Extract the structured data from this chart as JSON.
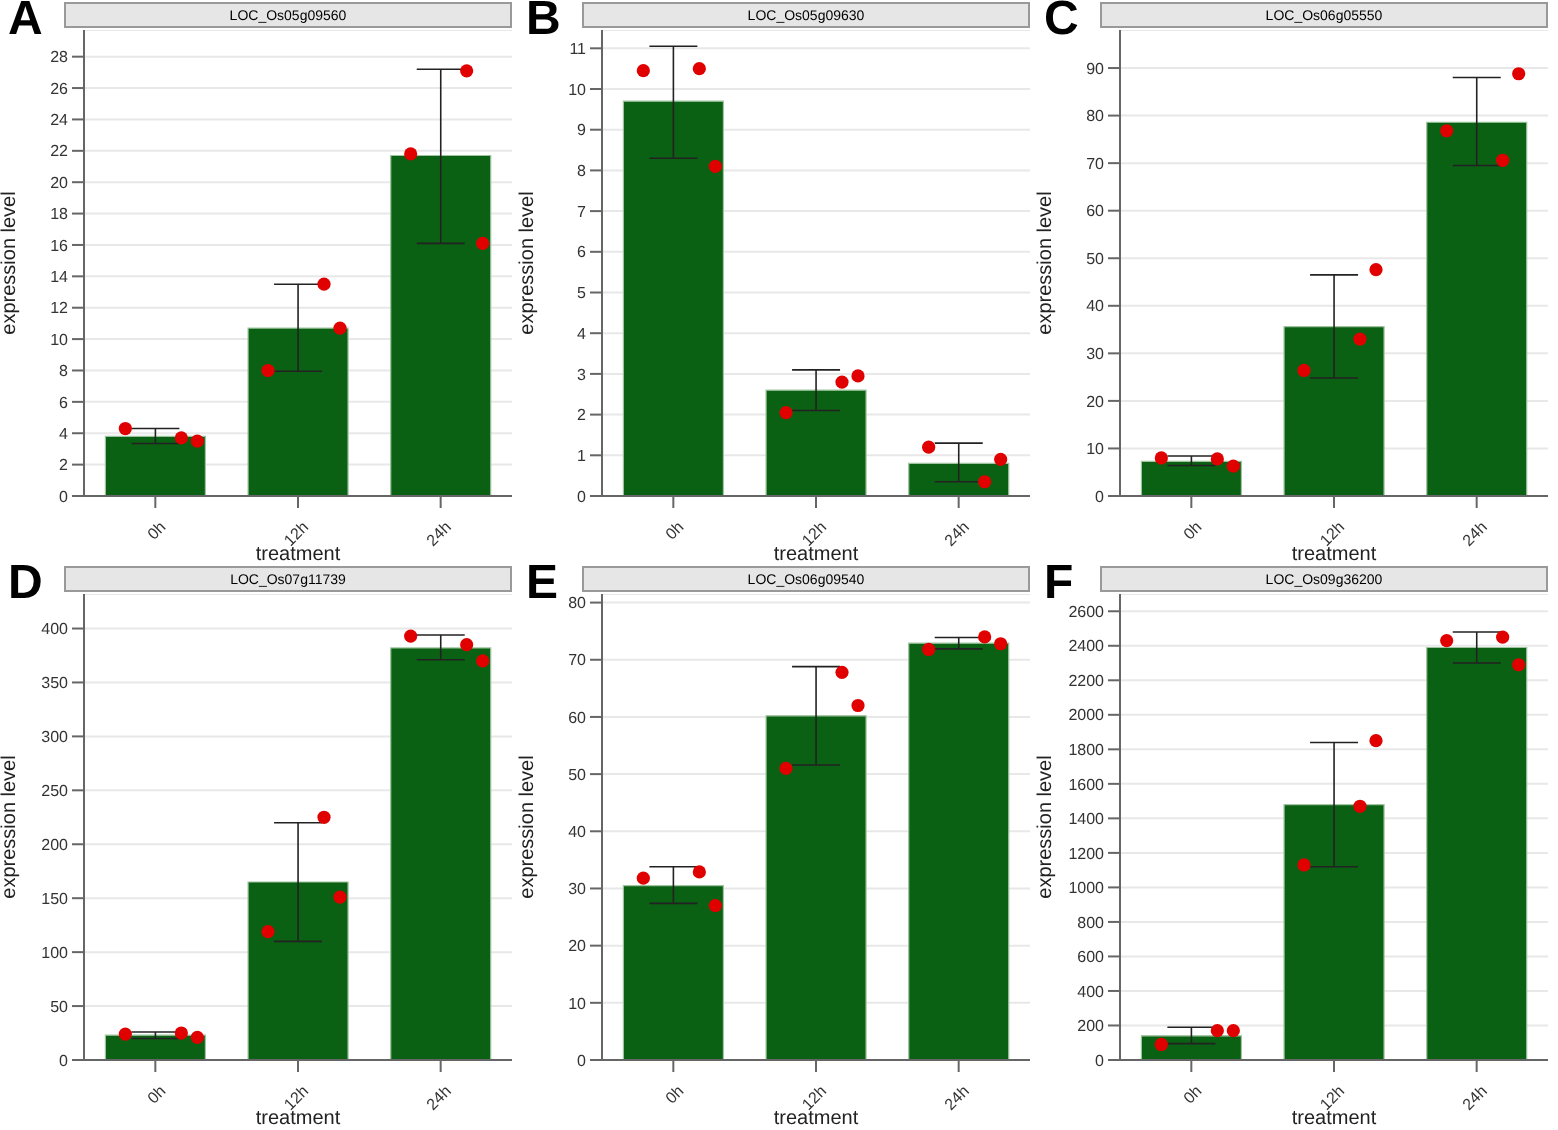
{
  "chart_data": [
    {
      "type": "bar",
      "title": "LOC_Os05g09560",
      "annotations": [
        "A"
      ],
      "xlabel": "treatment",
      "ylabel": "expression level",
      "categories": [
        "0h",
        "12h",
        "24h"
      ],
      "ylim": [
        0,
        29.7
      ],
      "yticks": [
        0,
        2,
        4,
        6,
        8,
        10,
        12,
        14,
        16,
        18,
        20,
        22,
        24,
        26,
        28
      ],
      "grid": "y",
      "marker": "circle",
      "series": [
        {
          "color": "#0b6113",
          "values": [
            3.8,
            10.7,
            21.7
          ],
          "errors": [
            [
              3.35,
              4.3
            ],
            [
              7.95,
              13.5
            ],
            [
              16.1,
              27.2
            ]
          ]
        },
        {
          "type": "scatter",
          "color": "#e00000",
          "x": [
            "0h",
            "0h",
            "0h",
            "12h",
            "12h",
            "12h",
            "24h",
            "24h",
            "24h"
          ],
          "values": [
            4.3,
            3.7,
            3.5,
            8.0,
            13.5,
            10.7,
            21.8,
            27.1,
            16.1
          ]
        }
      ]
    },
    {
      "type": "bar",
      "title": "LOC_Os05g09630",
      "annotations": [
        "B"
      ],
      "xlabel": "treatment",
      "ylabel": "expression level",
      "categories": [
        "0h",
        "12h",
        "24h"
      ],
      "ylim": [
        0,
        11.45
      ],
      "yticks": [
        0,
        1,
        2,
        3,
        4,
        5,
        6,
        7,
        8,
        9,
        10,
        11
      ],
      "grid": "y",
      "marker": "circle",
      "series": [
        {
          "color": "#0b6113",
          "values": [
            9.7,
            2.6,
            0.8
          ],
          "errors": [
            [
              8.3,
              11.05
            ],
            [
              2.1,
              3.1
            ],
            [
              0.35,
              1.3
            ]
          ]
        },
        {
          "type": "scatter",
          "color": "#e00000",
          "x": [
            "0h",
            "0h",
            "0h",
            "12h",
            "12h",
            "12h",
            "24h",
            "24h",
            "24h"
          ],
          "values": [
            10.45,
            10.5,
            8.1,
            2.05,
            2.8,
            2.95,
            1.2,
            0.35,
            0.9
          ]
        }
      ]
    },
    {
      "type": "bar",
      "title": "LOC_Os06g05550",
      "annotations": [
        "C"
      ],
      "xlabel": "treatment",
      "ylabel": "expression level",
      "categories": [
        "0h",
        "12h",
        "24h"
      ],
      "ylim": [
        0,
        98
      ],
      "yticks": [
        0,
        10,
        20,
        30,
        40,
        50,
        60,
        70,
        80,
        90
      ],
      "grid": "y",
      "marker": "circle",
      "series": [
        {
          "color": "#0b6113",
          "values": [
            7.3,
            35.6,
            78.6
          ],
          "errors": [
            [
              6.4,
              8.4
            ],
            [
              24.8,
              46.5
            ],
            [
              69.5,
              88
            ]
          ]
        },
        {
          "type": "scatter",
          "color": "#e00000",
          "x": [
            "0h",
            "0h",
            "0h",
            "12h",
            "12h",
            "12h",
            "24h",
            "24h",
            "24h"
          ],
          "values": [
            8,
            7.8,
            6.3,
            26.4,
            33,
            47.6,
            76.8,
            70.6,
            88.8
          ]
        }
      ]
    },
    {
      "type": "bar",
      "title": "LOC_Os07g11739",
      "annotations": [
        "D"
      ],
      "xlabel": "treatment",
      "ylabel": "expression level",
      "categories": [
        "0h",
        "12h",
        "24h"
      ],
      "ylim": [
        0,
        432
      ],
      "yticks": [
        0,
        50,
        100,
        150,
        200,
        250,
        300,
        350,
        400
      ],
      "grid": "y",
      "marker": "circle",
      "series": [
        {
          "color": "#0b6113",
          "values": [
            23,
            165,
            382
          ],
          "errors": [
            [
              20,
              26
            ],
            [
              110,
              220
            ],
            [
              371,
              394
            ]
          ]
        },
        {
          "type": "scatter",
          "color": "#e00000",
          "x": [
            "0h",
            "0h",
            "0h",
            "12h",
            "12h",
            "12h",
            "24h",
            "24h",
            "24h"
          ],
          "values": [
            24,
            25,
            21,
            119,
            225,
            151,
            393,
            385,
            370
          ]
        }
      ]
    },
    {
      "type": "bar",
      "title": "LOC_Os06g09540",
      "annotations": [
        "E"
      ],
      "xlabel": "treatment",
      "ylabel": "expression level",
      "categories": [
        "0h",
        "12h",
        "24h"
      ],
      "ylim": [
        0,
        81.5
      ],
      "yticks": [
        0,
        10,
        20,
        30,
        40,
        50,
        60,
        70,
        80
      ],
      "grid": "y",
      "marker": "circle",
      "series": [
        {
          "color": "#0b6113",
          "values": [
            30.5,
            60.2,
            72.9
          ],
          "errors": [
            [
              27.4,
              33.8
            ],
            [
              51.6,
              68.8
            ],
            [
              71.9,
              73.9
            ]
          ]
        },
        {
          "type": "scatter",
          "color": "#e00000",
          "x": [
            "0h",
            "0h",
            "0h",
            "12h",
            "12h",
            "12h",
            "24h",
            "24h",
            "24h"
          ],
          "values": [
            31.8,
            32.9,
            27,
            51,
            67.8,
            62,
            71.8,
            74,
            72.8
          ]
        }
      ]
    },
    {
      "type": "bar",
      "title": "LOC_Os09g36200",
      "annotations": [
        "F"
      ],
      "xlabel": "treatment",
      "ylabel": "expression level",
      "categories": [
        "0h",
        "12h",
        "24h"
      ],
      "ylim": [
        0,
        2700
      ],
      "yticks": [
        0,
        200,
        400,
        600,
        800,
        1000,
        1200,
        1400,
        1600,
        1800,
        2000,
        2200,
        2400,
        2600
      ],
      "grid": "y",
      "marker": "circle",
      "series": [
        {
          "color": "#0b6113",
          "values": [
            140,
            1480,
            2390
          ],
          "errors": [
            [
              95,
              190
            ],
            [
              1120,
              1840
            ],
            [
              2300,
              2480
            ]
          ]
        },
        {
          "type": "scatter",
          "color": "#e00000",
          "x": [
            "0h",
            "0h",
            "0h",
            "12h",
            "12h",
            "12h",
            "24h",
            "24h",
            "24h"
          ],
          "values": [
            90,
            170,
            170,
            1130,
            1470,
            1850,
            2430,
            2450,
            2290
          ]
        }
      ]
    }
  ]
}
